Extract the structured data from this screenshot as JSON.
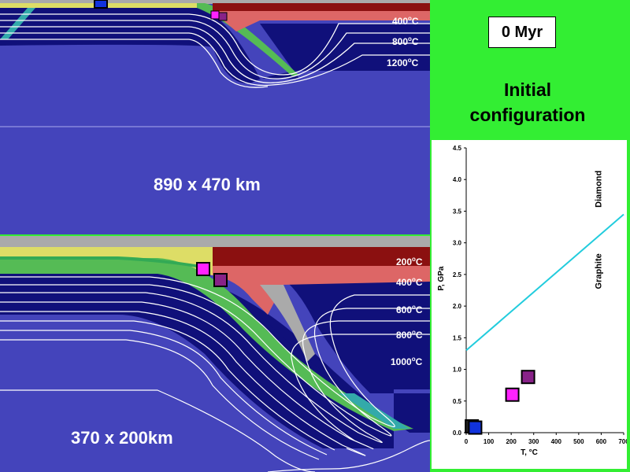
{
  "title": "0 Myr",
  "caption_line1": "Initial",
  "caption_line2": "configuration",
  "top_panel": {
    "scale_label": "890 x 470 km",
    "isotherms": [
      "400",
      "800",
      "1200"
    ],
    "unit": "oC"
  },
  "bottom_panel": {
    "scale_label": "370 x 200km",
    "isotherms": [
      "200",
      "400",
      "600",
      "800",
      "1000"
    ],
    "unit": "oC"
  },
  "colors": {
    "mantle": "#4444bb",
    "dark_mantle": "#10107a",
    "crust_red": "#dd6666",
    "crust_darkred": "#8b1010",
    "sediment_yellow": "#dddd66",
    "green_layer": "#55bb55",
    "teal": "#33aaaa",
    "grey": "#aaaaaa",
    "slide_bg": "#33ee33"
  },
  "chart_data": {
    "type": "scatter",
    "xlabel": "T, °C",
    "ylabel": "P, GPa",
    "xlim": [
      0,
      700
    ],
    "ylim": [
      0,
      4.5
    ],
    "xticks": [
      0,
      100,
      200,
      300,
      400,
      500,
      600,
      700
    ],
    "yticks": [
      "0.0",
      "0.5",
      "1.0",
      "1.5",
      "2.0",
      "2.5",
      "3.0",
      "3.5",
      "4.0",
      "4.5"
    ],
    "boundary": {
      "x": [
        0,
        700
      ],
      "y": [
        1.3,
        3.45
      ],
      "color": "#22ccdd"
    },
    "field_labels": [
      "Diamond",
      "Graphite"
    ],
    "points": [
      {
        "T": 25,
        "P": 0.1,
        "color": "#222222"
      },
      {
        "T": 40,
        "P": 0.08,
        "color": "#1133dd"
      },
      {
        "T": 205,
        "P": 0.6,
        "color": "#ff22ff"
      },
      {
        "T": 275,
        "P": 0.88,
        "color": "#882288"
      }
    ]
  }
}
